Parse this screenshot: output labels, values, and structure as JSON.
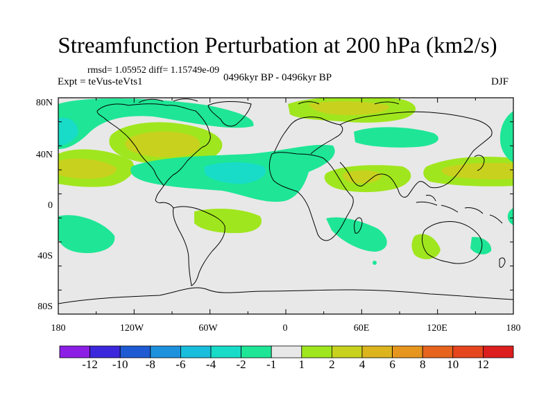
{
  "title": "Streamfunction Perturbation at 200 hPa (km2/s)",
  "stats": "rmsd= 1.05952 diff= 1.15749e-09",
  "experiment": "Expt = teVus-teVts1",
  "period": "0496kyr BP - 0496kyr BP",
  "season": "DJF",
  "lat_labels": [
    "80N",
    "40N",
    "0",
    "40S",
    "80S"
  ],
  "lon_labels": [
    "180",
    "120W",
    "60W",
    "0",
    "60E",
    "120E",
    "180"
  ],
  "colorbar": {
    "labels": [
      "-12",
      "-10",
      "-8",
      "-6",
      "-4",
      "-2",
      "-1",
      "1",
      "2",
      "4",
      "6",
      "8",
      "10",
      "12"
    ],
    "colors": [
      "#8c1ee6",
      "#3c28dc",
      "#1e5ad2",
      "#1e91dc",
      "#18bedc",
      "#18dcc8",
      "#1ee696",
      "#e8e8e8",
      "#a0e61e",
      "#c8d21e",
      "#dcb41e",
      "#e6961e",
      "#e6641e",
      "#e6461e",
      "#dc1e1e"
    ]
  },
  "palette": {
    "background": "#e8e8e8",
    "pos_light": "#a0e61e",
    "pos_mid": "#c8d21e",
    "neg_light": "#1ee696",
    "neg_mid": "#18dcc8",
    "land": "#000000"
  }
}
